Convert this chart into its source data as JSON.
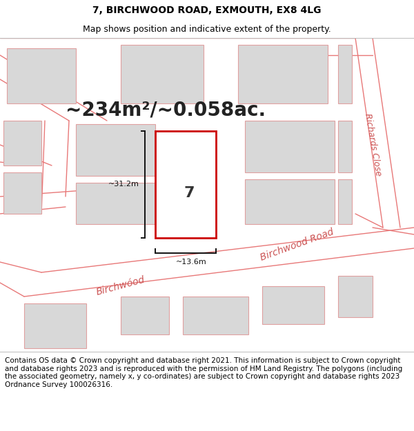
{
  "title_line1": "7, BIRCHWOOD ROAD, EXMOUTH, EX8 4LG",
  "title_line2": "Map shows position and indicative extent of the property.",
  "area_text": "~234m²/~0.058ac.",
  "dim_vertical": "~31.2m",
  "dim_horizontal": "~13.6m",
  "property_number": "7",
  "street_label1": "Birchwood Road",
  "street_label2": "Birchwood Road",
  "street_label3": "Richards Close",
  "footer_text": "Contains OS data © Crown copyright and database right 2021. This information is subject to Crown copyright and database rights 2023 and is reproduced with the permission of HM Land Registry. The polygons (including the associated geometry, namely x, y co-ordinates) are subject to Crown copyright and database rights 2023 Ordnance Survey 100026316.",
  "map_bg": "#f2f0f0",
  "building_fill": "#d8d8d8",
  "building_edge": "#e0a0a0",
  "road_color": "#e87878",
  "plot_fill": "#ffffff",
  "plot_edge": "#cc0000",
  "title_fontsize": 10,
  "subtitle_fontsize": 9,
  "area_fontsize": 20,
  "footer_fontsize": 7.5
}
